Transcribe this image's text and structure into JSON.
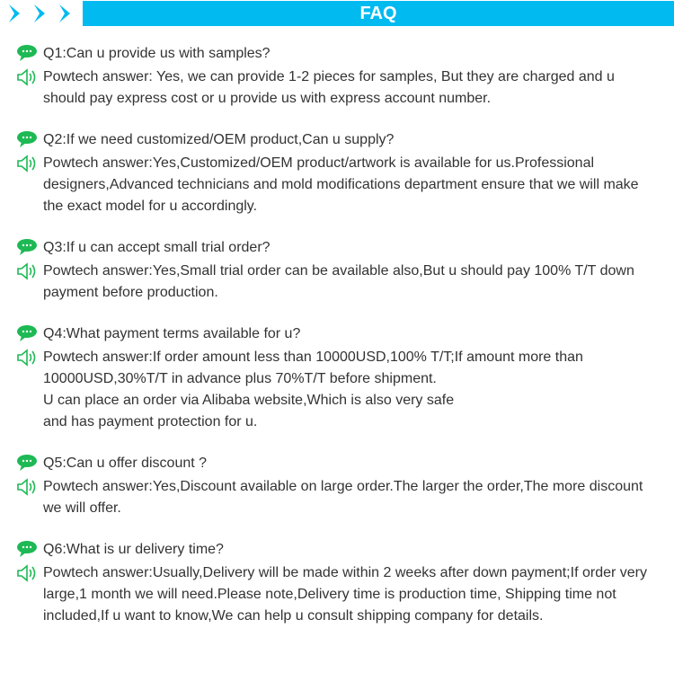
{
  "colors": {
    "header_bg": "#00baf0",
    "header_text": "#ffffff",
    "arrow": "#00baf0",
    "bubble": "#1db954",
    "speaker": "#1db954",
    "text": "#333333",
    "background": "#ffffff"
  },
  "header": {
    "title": "FAQ",
    "title_fontsize": 20
  },
  "faqs": [
    {
      "question": "Q1:Can u provide us with samples?",
      "answer": "Powtech answer: Yes, we can provide 1-2 pieces for samples, But they are charged and u should pay express cost or u provide us with express account number."
    },
    {
      "question": "Q2:If we need customized/OEM product,Can u supply?",
      "answer": "Powtech answer:Yes,Customized/OEM product/artwork is available for us.Professional designers,Advanced technicians and mold modifications department ensure that we will make the exact model for u accordingly."
    },
    {
      "question": "Q3:If u can accept small trial order?",
      "answer": "Powtech answer:Yes,Small trial order can be available also,But u should pay 100% T/T down payment before production."
    },
    {
      "question": "Q4:What payment terms available for u?",
      "answer": "Powtech answer:If order amount less than 10000USD,100% T/T;If amount more than 10000USD,30%T/T in advance plus 70%T/T before shipment.\nU can place an order via Alibaba website,Which is also very safe\nand has payment protection for u."
    },
    {
      "question": "Q5:Can u offer discount ?",
      "answer": "Powtech answer:Yes,Discount available on large order.The larger the order,The more discount we will offer."
    },
    {
      "question": "Q6:What is ur delivery time?",
      "answer": "Powtech answer:Usually,Delivery will be made within 2 weeks after down payment;If order very large,1 month we will need.Please note,Delivery time is production time, Shipping time not included,If u want to know,We can help u consult shipping company for details."
    }
  ]
}
